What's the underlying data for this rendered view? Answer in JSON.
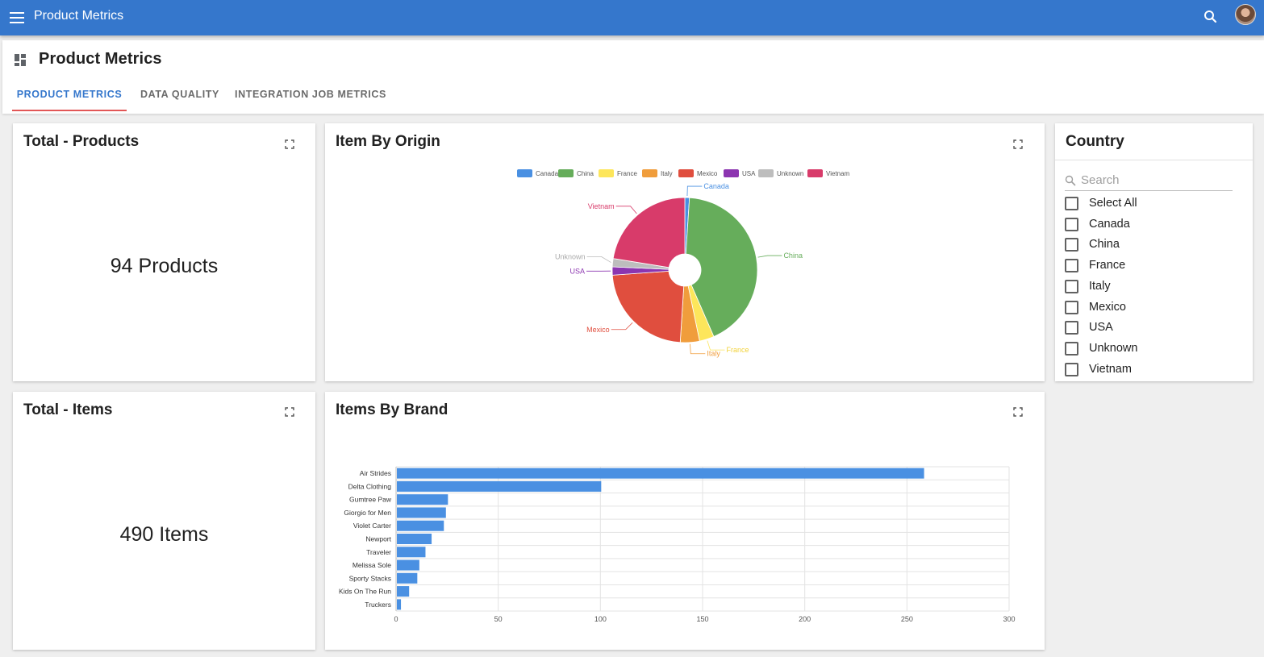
{
  "appbar": {
    "title": "Product Metrics",
    "menu_icon": "menu-icon",
    "search_icon": "search-icon",
    "accent": "#3577cc"
  },
  "header": {
    "title": "Product Metrics",
    "tabs": [
      {
        "label": "PRODUCT METRICS",
        "active": true
      },
      {
        "label": "DATA QUALITY",
        "active": false
      },
      {
        "label": "INTEGRATION JOB METRICS",
        "active": false
      }
    ]
  },
  "cards": {
    "total_products": {
      "title": "Total - Products",
      "value": "94 Products"
    },
    "total_items": {
      "title": "Total - Items",
      "value": "490 Items"
    },
    "item_by_origin": {
      "title": "Item By Origin"
    },
    "items_by_brand": {
      "title": "Items By Brand"
    }
  },
  "country_filter": {
    "title": "Country",
    "search_placeholder": "Search",
    "options": [
      {
        "label": "Select All",
        "checked": false
      },
      {
        "label": "Canada",
        "checked": false
      },
      {
        "label": "China",
        "checked": false
      },
      {
        "label": "France",
        "checked": false
      },
      {
        "label": "Italy",
        "checked": false
      },
      {
        "label": "Mexico",
        "checked": false
      },
      {
        "label": "USA",
        "checked": false
      },
      {
        "label": "Unknown",
        "checked": false
      },
      {
        "label": "Vietnam",
        "checked": false
      }
    ]
  },
  "chart_data": [
    {
      "type": "pie",
      "title": "Item By Origin",
      "legend_position": "top",
      "categories": [
        "Canada",
        "China",
        "France",
        "Italy",
        "Mexico",
        "USA",
        "Unknown",
        "Vietnam"
      ],
      "values": [
        5,
        208,
        16,
        21,
        112,
        9,
        9,
        110
      ],
      "colors": [
        "#4a90e2",
        "#66ad5b",
        "#fde65b",
        "#f09d3c",
        "#e04e3e",
        "#8c35b0",
        "#bdbdbd",
        "#d83b6a"
      ]
    },
    {
      "type": "bar",
      "orientation": "horizontal",
      "title": "Items By Brand",
      "categories": [
        "Air Strides",
        "Delta Clothing",
        "Gumtree Paw",
        "Giorgio for Men",
        "Violet Carter",
        "Newport",
        "Traveler",
        "Melissa Sole",
        "Sporty Stacks",
        "Kids On The Run",
        "Truckers"
      ],
      "values": [
        258,
        100,
        25,
        24,
        23,
        17,
        14,
        11,
        10,
        6,
        2
      ],
      "xlim": [
        0,
        300
      ],
      "xticks": [
        0,
        50,
        100,
        150,
        200,
        250,
        300
      ],
      "grid": true,
      "color": "#4a90e2"
    }
  ]
}
